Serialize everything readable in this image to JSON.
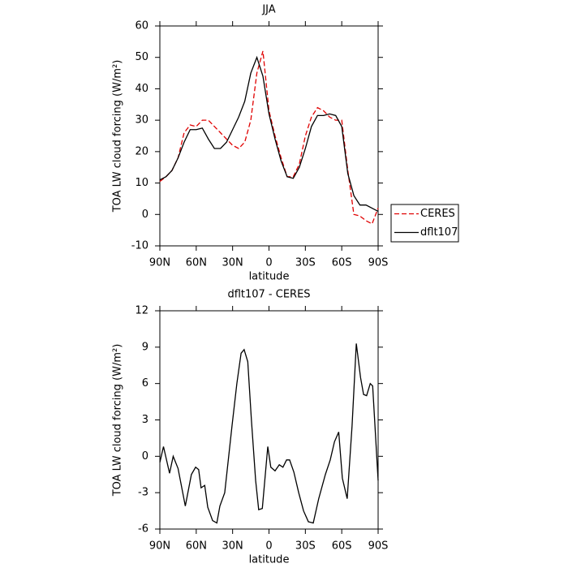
{
  "chart_data": [
    {
      "type": "line",
      "title": "JJA",
      "xlabel": "latitude",
      "ylabel": "TOA LW cloud forcing (W/m²)",
      "x": [
        90,
        85,
        80,
        75,
        70,
        65,
        60,
        55,
        50,
        45,
        40,
        35,
        30,
        25,
        20,
        15,
        10,
        5,
        0,
        -5,
        -10,
        -15,
        -20,
        -25,
        -30,
        -35,
        -40,
        -45,
        -50,
        -55,
        -60,
        -65,
        -70,
        -75,
        -80,
        -85,
        -90
      ],
      "xlim": [
        90,
        -90
      ],
      "xticks": [
        {
          "value": 90,
          "label": "90N"
        },
        {
          "value": 60,
          "label": "60N"
        },
        {
          "value": 30,
          "label": "30N"
        },
        0,
        {
          "value": -30,
          "label": "30S"
        },
        {
          "value": -60,
          "label": "60S"
        },
        {
          "value": -90,
          "label": "90S"
        }
      ],
      "ylim": [
        -10,
        60
      ],
      "yticks": [
        -10,
        0,
        10,
        20,
        30,
        40,
        50,
        60
      ],
      "legend": "right",
      "series": [
        {
          "name": "CERES",
          "color": "#e00000",
          "line_style": "dashed",
          "values": [
            10.5,
            12,
            14,
            18,
            26,
            28.5,
            28,
            30,
            30,
            28,
            26,
            24,
            22,
            21,
            23,
            30,
            45,
            52,
            33,
            25,
            18,
            12,
            12,
            16,
            25,
            31,
            34,
            33,
            31,
            30,
            30,
            14,
            0,
            -0.5,
            -2,
            -3,
            2
          ]
        },
        {
          "name": "dflt107",
          "color": "#000000",
          "line_style": "solid",
          "values": [
            11,
            12,
            14,
            18,
            23,
            27,
            27,
            27.5,
            24,
            21,
            21,
            23,
            27,
            31,
            36,
            45,
            50,
            44,
            32,
            24,
            17,
            12,
            11.5,
            15,
            21,
            28,
            31.5,
            31.5,
            32,
            31.5,
            28,
            13,
            6,
            3,
            3,
            2,
            1
          ]
        }
      ]
    },
    {
      "type": "line",
      "title": "dflt107 - CERES",
      "xlabel": "latitude",
      "ylabel": "TOA LW cloud forcing (W/m²)",
      "x": [
        90,
        87,
        82,
        79,
        75,
        69,
        64,
        60.5,
        58,
        56,
        53,
        50.5,
        46.5,
        43,
        40.5,
        36.5,
        30.5,
        26.5,
        23,
        20.5,
        17.5,
        14.5,
        11,
        8.5,
        5.5,
        1,
        -1.5,
        -5,
        -8.5,
        -11.5,
        -14.5,
        -17,
        -20.5,
        -24.5,
        -28.5,
        -32.5,
        -36.5,
        -41,
        -46.5,
        -50.5,
        -54,
        -57.5,
        -60.5,
        -64.5,
        -68.5,
        -72,
        -75.5,
        -78,
        -80.5,
        -83.5,
        -85.5,
        -90
      ],
      "xlim": [
        90,
        -90
      ],
      "xticks": [
        {
          "value": 90,
          "label": "90N"
        },
        {
          "value": 60,
          "label": "60N"
        },
        {
          "value": 30,
          "label": "30N"
        },
        0,
        {
          "value": -30,
          "label": "30S"
        },
        {
          "value": -60,
          "label": "60S"
        },
        {
          "value": -90,
          "label": "90S"
        }
      ],
      "ylim": [
        -6,
        12
      ],
      "yticks": [
        -6,
        -3,
        0,
        3,
        6,
        9,
        12
      ],
      "color": "#000000",
      "values": [
        -0.5,
        0.8,
        -1.4,
        0,
        -1,
        -4.1,
        -1.5,
        -0.9,
        -1.1,
        -2.6,
        -2.4,
        -4.2,
        -5.3,
        -5.5,
        -4.1,
        -3,
        2.5,
        6,
        8.5,
        8.8,
        7.8,
        3,
        -2,
        -4.4,
        -4.3,
        0.8,
        -0.9,
        -1.2,
        -0.7,
        -0.9,
        -0.3,
        -0.3,
        -1.3,
        -3,
        -4.5,
        -5.4,
        -5.5,
        -3.5,
        -1.5,
        -0.3,
        1.2,
        2,
        -1.8,
        -3.5,
        2.5,
        9.3,
        6.5,
        5.1,
        5,
        6,
        5.8,
        -2
      ]
    }
  ]
}
